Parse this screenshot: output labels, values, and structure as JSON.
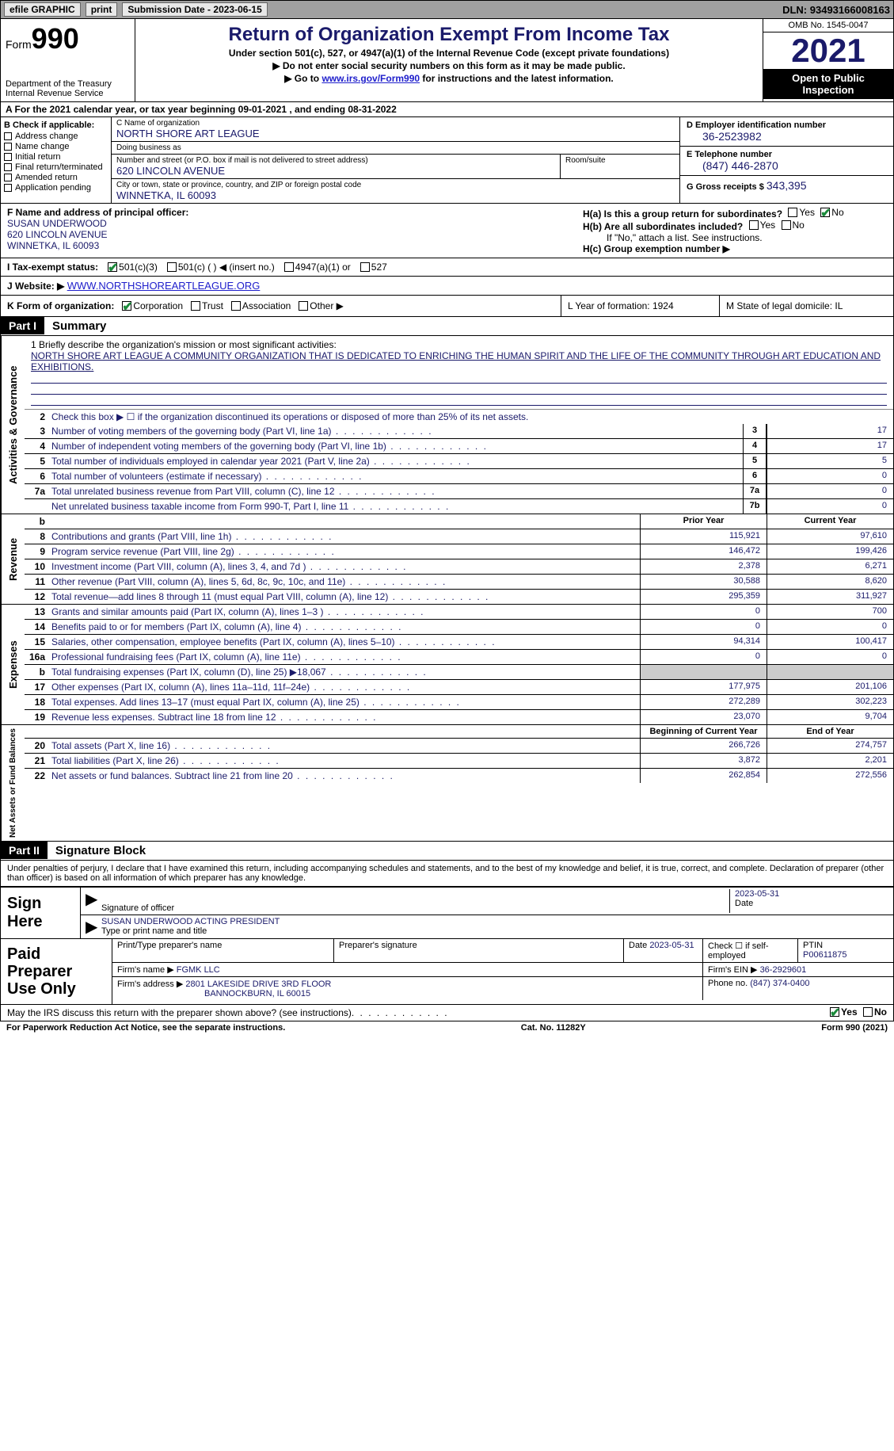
{
  "topbar": {
    "efile": "efile GRAPHIC",
    "print": "print",
    "subdate_label": "Submission Date - ",
    "subdate": "2023-06-15",
    "dln_label": "DLN: ",
    "dln": "93493166008163"
  },
  "header": {
    "form_prefix": "Form",
    "form_num": "990",
    "dept": "Department of the Treasury",
    "irs": "Internal Revenue Service",
    "title": "Return of Organization Exempt From Income Tax",
    "sub1": "Under section 501(c), 527, or 4947(a)(1) of the Internal Revenue Code (except private foundations)",
    "sub2": "▶ Do not enter social security numbers on this form as it may be made public.",
    "goto_prefix": "▶ Go to ",
    "goto_link": "www.irs.gov/Form990",
    "goto_suffix": " for instructions and the latest information.",
    "omb": "OMB No. 1545-0047",
    "year": "2021",
    "open": "Open to Public Inspection"
  },
  "row_a": {
    "text": "A For the 2021 calendar year, or tax year beginning 09-01-2021    , and ending 08-31-2022"
  },
  "col_b": {
    "hdr": "B Check if applicable:",
    "items": [
      "Address change",
      "Name change",
      "Initial return",
      "Final return/terminated",
      "Amended return",
      "Application pending"
    ]
  },
  "col_c": {
    "name_lbl": "C Name of organization",
    "name": "NORTH SHORE ART LEAGUE",
    "dba_lbl": "Doing business as",
    "dba": "",
    "addr_lbl": "Number and street (or P.O. box if mail is not delivered to street address)",
    "addr": "620 LINCOLN AVENUE",
    "room_lbl": "Room/suite",
    "city_lbl": "City or town, state or province, country, and ZIP or foreign postal code",
    "city": "WINNETKA, IL  60093"
  },
  "col_d": {
    "ein_lbl": "D Employer identification number",
    "ein": "36-2523982",
    "tel_lbl": "E Telephone number",
    "tel": "(847) 446-2870",
    "gross_lbl": "G Gross receipts $ ",
    "gross": "343,395"
  },
  "col_f": {
    "lbl": "F  Name and address of principal officer:",
    "name": "SUSAN UNDERWOOD",
    "addr1": "620 LINCOLN AVENUE",
    "addr2": "WINNETKA, IL  60093"
  },
  "col_h": {
    "ha": "H(a)  Is this a group return for subordinates?",
    "hb": "H(b)  Are all subordinates included?",
    "hb_note": "If \"No,\" attach a list. See instructions.",
    "hc": "H(c)  Group exemption number ▶",
    "yes": "Yes",
    "no": "No"
  },
  "row_i": {
    "lbl": "I    Tax-exempt status:",
    "opt1": "501(c)(3)",
    "opt2": "501(c) (  ) ◀ (insert no.)",
    "opt3": "4947(a)(1) or",
    "opt4": "527"
  },
  "row_j": {
    "lbl": "J    Website: ▶ ",
    "url": "WWW.NORTHSHOREARTLEAGUE.ORG"
  },
  "row_k": {
    "lbl": "K Form of organization:",
    "opts": [
      "Corporation",
      "Trust",
      "Association",
      "Other ▶"
    ]
  },
  "row_l": {
    "text": "L Year of formation: 1924"
  },
  "row_m": {
    "text": "M State of legal domicile: IL"
  },
  "part1": {
    "num": "Part I",
    "title": "Summary"
  },
  "mission": {
    "lbl": "1  Briefly describe the organization's mission or most significant activities:",
    "txt": "NORTH SHORE ART LEAGUE A COMMUNITY ORGANIZATION THAT IS DEDICATED TO ENRICHING THE HUMAN SPIRIT AND THE LIFE OF THE COMMUNITY THROUGH ART EDUCATION AND EXHIBITIONS."
  },
  "vlabels": {
    "gov": "Activities & Governance",
    "rev": "Revenue",
    "exp": "Expenses",
    "net": "Net Assets or Fund Balances"
  },
  "gov_lines": [
    {
      "n": "2",
      "d": "Check this box ▶ ☐  if the organization discontinued its operations or disposed of more than 25% of its net assets.",
      "ref": "",
      "v": ""
    },
    {
      "n": "3",
      "d": "Number of voting members of the governing body (Part VI, line 1a)",
      "ref": "3",
      "v": "17"
    },
    {
      "n": "4",
      "d": "Number of independent voting members of the governing body (Part VI, line 1b)",
      "ref": "4",
      "v": "17"
    },
    {
      "n": "5",
      "d": "Total number of individuals employed in calendar year 2021 (Part V, line 2a)",
      "ref": "5",
      "v": "5"
    },
    {
      "n": "6",
      "d": "Total number of volunteers (estimate if necessary)",
      "ref": "6",
      "v": "0"
    },
    {
      "n": "7a",
      "d": "Total unrelated business revenue from Part VIII, column (C), line 12",
      "ref": "7a",
      "v": "0"
    },
    {
      "n": "",
      "d": "Net unrelated business taxable income from Form 990-T, Part I, line 11",
      "ref": "7b",
      "v": "0"
    }
  ],
  "col_hdrs": {
    "b": "b",
    "prior": "Prior Year",
    "current": "Current Year"
  },
  "rev_lines": [
    {
      "n": "8",
      "d": "Contributions and grants (Part VIII, line 1h)",
      "p": "115,921",
      "c": "97,610"
    },
    {
      "n": "9",
      "d": "Program service revenue (Part VIII, line 2g)",
      "p": "146,472",
      "c": "199,426"
    },
    {
      "n": "10",
      "d": "Investment income (Part VIII, column (A), lines 3, 4, and 7d )",
      "p": "2,378",
      "c": "6,271"
    },
    {
      "n": "11",
      "d": "Other revenue (Part VIII, column (A), lines 5, 6d, 8c, 9c, 10c, and 11e)",
      "p": "30,588",
      "c": "8,620"
    },
    {
      "n": "12",
      "d": "Total revenue—add lines 8 through 11 (must equal Part VIII, column (A), line 12)",
      "p": "295,359",
      "c": "311,927"
    }
  ],
  "exp_lines": [
    {
      "n": "13",
      "d": "Grants and similar amounts paid (Part IX, column (A), lines 1–3 )",
      "p": "0",
      "c": "700"
    },
    {
      "n": "14",
      "d": "Benefits paid to or for members (Part IX, column (A), line 4)",
      "p": "0",
      "c": "0"
    },
    {
      "n": "15",
      "d": "Salaries, other compensation, employee benefits (Part IX, column (A), lines 5–10)",
      "p": "94,314",
      "c": "100,417"
    },
    {
      "n": "16a",
      "d": "Professional fundraising fees (Part IX, column (A), line 11e)",
      "p": "0",
      "c": "0"
    },
    {
      "n": "b",
      "d": "Total fundraising expenses (Part IX, column (D), line 25) ▶18,067",
      "p": "grey",
      "c": "grey"
    },
    {
      "n": "17",
      "d": "Other expenses (Part IX, column (A), lines 11a–11d, 11f–24e)",
      "p": "177,975",
      "c": "201,106"
    },
    {
      "n": "18",
      "d": "Total expenses. Add lines 13–17 (must equal Part IX, column (A), line 25)",
      "p": "272,289",
      "c": "302,223"
    },
    {
      "n": "19",
      "d": "Revenue less expenses. Subtract line 18 from line 12",
      "p": "23,070",
      "c": "9,704"
    }
  ],
  "net_hdrs": {
    "begin": "Beginning of Current Year",
    "end": "End of Year"
  },
  "net_lines": [
    {
      "n": "20",
      "d": "Total assets (Part X, line 16)",
      "p": "266,726",
      "c": "274,757"
    },
    {
      "n": "21",
      "d": "Total liabilities (Part X, line 26)",
      "p": "3,872",
      "c": "2,201"
    },
    {
      "n": "22",
      "d": "Net assets or fund balances. Subtract line 21 from line 20",
      "p": "262,854",
      "c": "272,556"
    }
  ],
  "part2": {
    "num": "Part II",
    "title": "Signature Block"
  },
  "sig": {
    "decl": "Under penalties of perjury, I declare that I have examined this return, including accompanying schedules and statements, and to the best of my knowledge and belief, it is true, correct, and complete. Declaration of preparer (other than officer) is based on all information of which preparer has any knowledge.",
    "sign_here": "Sign Here",
    "sig_officer": "Signature of officer",
    "date": "2023-05-31",
    "date_lbl": "Date",
    "name": "SUSAN UNDERWOOD ACTING PRESIDENT",
    "name_lbl": "Type or print name and title"
  },
  "paid": {
    "title": "Paid Preparer Use Only",
    "print_lbl": "Print/Type preparer's name",
    "sig_lbl": "Preparer's signature",
    "date_lbl": "Date",
    "date": "2023-05-31",
    "check_lbl": "Check ☐ if self-employed",
    "ptin_lbl": "PTIN",
    "ptin": "P00611875",
    "firm_name_lbl": "Firm's name    ▶ ",
    "firm_name": "FGMK LLC",
    "firm_ein_lbl": "Firm's EIN ▶ ",
    "firm_ein": "36-2929601",
    "firm_addr_lbl": "Firm's address ▶ ",
    "firm_addr1": "2801 LAKESIDE DRIVE 3RD FLOOR",
    "firm_addr2": "BANNOCKBURN, IL  60015",
    "phone_lbl": "Phone no. ",
    "phone": "(847) 374-0400"
  },
  "discuss": {
    "text": "May the IRS discuss this return with the preparer shown above? (see instructions)",
    "yes": "Yes",
    "no": "No"
  },
  "footer": {
    "left": "For Paperwork Reduction Act Notice, see the separate instructions.",
    "mid": "Cat. No. 11282Y",
    "right": "Form 990 (2021)"
  },
  "colors": {
    "link": "#2020cc",
    "blue": "#1a1a6a",
    "check": "#1a8a3a"
  }
}
